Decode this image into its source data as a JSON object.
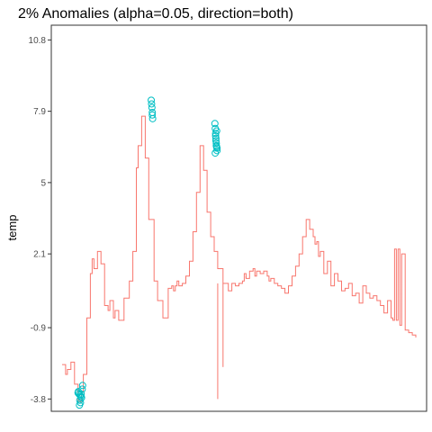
{
  "chart_data": {
    "type": "line",
    "title": "2% Anomalies (alpha=0.05, direction=both)",
    "xlabel": "",
    "ylabel": "temp",
    "y_ticks": [
      -3.8,
      -0.9,
      2.1,
      5,
      7.9,
      10.8
    ],
    "ylim": [
      -4.3,
      11.4
    ],
    "xlim": [
      0,
      1
    ],
    "grid": false,
    "legend": "none",
    "colors": {
      "line": "#F8766D",
      "anomaly": "#00BFC4",
      "frame": "#333333",
      "tick": "#333333"
    },
    "series": [
      {
        "name": "",
        "x": [
          0.0,
          0.01,
          0.015,
          0.025,
          0.035,
          0.045,
          0.055,
          0.06,
          0.07,
          0.08,
          0.085,
          0.09,
          0.1,
          0.11,
          0.12,
          0.13,
          0.135,
          0.145,
          0.15,
          0.16,
          0.175,
          0.19,
          0.2,
          0.21,
          0.215,
          0.225,
          0.235,
          0.245,
          0.26,
          0.27,
          0.285,
          0.3,
          0.31,
          0.315,
          0.32,
          0.325,
          0.33,
          0.34,
          0.35,
          0.36,
          0.37,
          0.38,
          0.39,
          0.4,
          0.41,
          0.42,
          0.43,
          0.44,
          0.455,
          0.47,
          0.48,
          0.49,
          0.5,
          0.51,
          0.515,
          0.52,
          0.53,
          0.54,
          0.545,
          0.55,
          0.56,
          0.57,
          0.58,
          0.585,
          0.59,
          0.6,
          0.61,
          0.62,
          0.63,
          0.64,
          0.65,
          0.66,
          0.67,
          0.68,
          0.69,
          0.7,
          0.71,
          0.715,
          0.72,
          0.725,
          0.73,
          0.74,
          0.75,
          0.76,
          0.77,
          0.78,
          0.79,
          0.8,
          0.81,
          0.82,
          0.83,
          0.84,
          0.85,
          0.86,
          0.87,
          0.88,
          0.89,
          0.9,
          0.91,
          0.92,
          0.93,
          0.935,
          0.94,
          0.945,
          0.95,
          0.955,
          0.96,
          0.97,
          0.98,
          0.99,
          1.0
        ],
        "y": [
          -2.4,
          -2.8,
          -2.6,
          -2.3,
          -3.2,
          -3.9,
          -3.5,
          -2.8,
          -0.5,
          1.3,
          1.9,
          1.5,
          2.2,
          1.7,
          0.0,
          -0.2,
          0.2,
          -0.5,
          -0.2,
          -0.6,
          0.3,
          1.0,
          2.2,
          5.6,
          6.5,
          7.7,
          6.0,
          3.5,
          1.0,
          0.2,
          -0.5,
          0.7,
          0.8,
          0.6,
          0.8,
          1.0,
          0.8,
          0.9,
          1.2,
          1.8,
          3.0,
          4.6,
          6.5,
          5.5,
          3.8,
          2.8,
          2.2,
          1.5,
          0.9,
          0.6,
          0.9,
          0.8,
          0.9,
          1.0,
          1.3,
          1.1,
          1.4,
          1.5,
          1.2,
          1.4,
          1.3,
          1.4,
          1.2,
          1.0,
          1.1,
          0.9,
          0.8,
          0.7,
          0.5,
          0.8,
          1.2,
          1.6,
          2.1,
          2.8,
          3.5,
          3.1,
          2.8,
          2.5,
          2.6,
          2.0,
          2.2,
          1.3,
          1.8,
          0.8,
          1.3,
          1.0,
          0.6,
          0.7,
          0.9,
          0.4,
          0.5,
          0.1,
          0.8,
          0.5,
          0.3,
          0.4,
          0.2,
          0.0,
          -0.3,
          0.2,
          -0.5,
          -0.6,
          2.3,
          -0.6,
          2.3,
          -0.8,
          2.1,
          -1.0,
          -1.1,
          -1.2,
          -1.3
        ],
        "spikes": [
          {
            "x": 0.44,
            "low": -3.8,
            "high": 0.9
          },
          {
            "x": 0.455,
            "low": -2.5,
            "high": 0.9
          },
          {
            "x": 0.52,
            "low": 1.1,
            "high": 1.2
          }
        ]
      }
    ],
    "anomalies": {
      "x": [
        0.045,
        0.048,
        0.051,
        0.053,
        0.055,
        0.05,
        0.046,
        0.052,
        0.049,
        0.054,
        0.057,
        0.058,
        0.252,
        0.253,
        0.254,
        0.255,
        0.256,
        0.255,
        0.432,
        0.433,
        0.434,
        0.435,
        0.436,
        0.437,
        0.438,
        0.433,
        0.436,
        0.434,
        0.437,
        0.438,
        0.435
      ],
      "y": [
        -3.55,
        -3.6,
        -3.65,
        -3.7,
        -3.75,
        -3.85,
        -3.5,
        -3.95,
        -4.05,
        -3.6,
        -3.4,
        -3.25,
        8.35,
        8.2,
        8.05,
        7.75,
        7.6,
        7.85,
        7.4,
        7.2,
        7.0,
        6.8,
        6.6,
        6.45,
        6.3,
        6.2,
        6.5,
        6.9,
        7.1,
        6.4,
        6.7
      ]
    }
  }
}
